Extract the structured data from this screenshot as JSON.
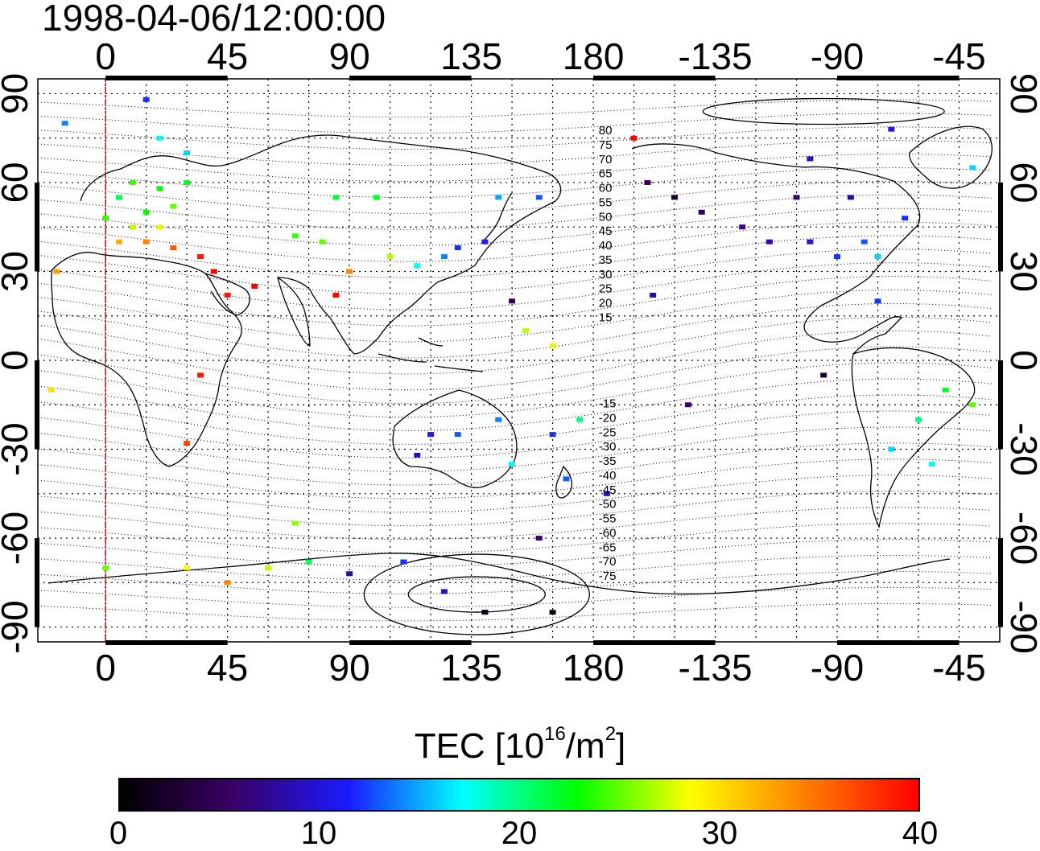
{
  "title": "1998-04-06/12:00:00",
  "map": {
    "lon_ticks_top": [
      "0",
      "45",
      "90",
      "135",
      "180",
      "-135",
      "-90",
      "-45"
    ],
    "lon_ticks_bottom": [
      "0",
      "45",
      "90",
      "135",
      "180",
      "-135",
      "-90",
      "-45"
    ],
    "lat_ticks_left": [
      "90",
      "60",
      "30",
      "0",
      "-30",
      "-60",
      "-90"
    ],
    "lat_ticks_right": [
      "90",
      "60",
      "30",
      "0",
      "-30",
      "-60",
      "-90"
    ],
    "lon_range": [
      -25,
      330
    ],
    "lat_range": [
      -95,
      95
    ],
    "meridian_line_lon": 0,
    "meridian_line_color": "#d00000",
    "graticule_step_deg": 15,
    "magnetic_contour_labels": [
      "80",
      "75",
      "70",
      "65",
      "60",
      "55",
      "50",
      "45",
      "40",
      "35",
      "30",
      "25",
      "20",
      "15",
      "-15",
      "-20",
      "-25",
      "-30",
      "-35",
      "-40",
      "-45",
      "-50",
      "-55",
      "-60",
      "-65",
      "-70",
      "-75"
    ],
    "colorbar": {
      "title": "TEC  [10",
      "title_exp": "16",
      "title_unit": "/m",
      "title_unit_exp": "2",
      "title_close": "]",
      "ticks": [
        "0",
        "10",
        "20",
        "30",
        "40"
      ],
      "range": [
        0,
        40
      ],
      "colors": [
        "#000000",
        "#3a0066",
        "#1a1aff",
        "#00ffff",
        "#00ff00",
        "#ffff00",
        "#ff7f00",
        "#ff0000"
      ]
    },
    "tec_points": [
      {
        "lon": 10,
        "lat": 60,
        "tec": 24
      },
      {
        "lon": 20,
        "lat": 58,
        "tec": 23
      },
      {
        "lon": 15,
        "lat": 50,
        "tec": 23
      },
      {
        "lon": 5,
        "lat": 55,
        "tec": 21
      },
      {
        "lon": 25,
        "lat": 52,
        "tec": 25
      },
      {
        "lon": 30,
        "lat": 60,
        "tec": 22
      },
      {
        "lon": 0,
        "lat": 48,
        "tec": 24
      },
      {
        "lon": 10,
        "lat": 45,
        "tec": 27
      },
      {
        "lon": 20,
        "lat": 45,
        "tec": 28
      },
      {
        "lon": 5,
        "lat": 40,
        "tec": 32
      },
      {
        "lon": 15,
        "lat": 40,
        "tec": 34
      },
      {
        "lon": 25,
        "lat": 38,
        "tec": 36
      },
      {
        "lon": 35,
        "lat": 35,
        "tec": 39
      },
      {
        "lon": 40,
        "lat": 30,
        "tec": 40
      },
      {
        "lon": 45,
        "lat": 22,
        "tec": 39
      },
      {
        "lon": 55,
        "lat": 25,
        "tec": 40
      },
      {
        "lon": 20,
        "lat": 75,
        "tec": 17
      },
      {
        "lon": -15,
        "lat": 80,
        "tec": 14
      },
      {
        "lon": 30,
        "lat": 70,
        "tec": 16
      },
      {
        "lon": 15,
        "lat": 88,
        "tec": 12
      },
      {
        "lon": -18,
        "lat": 30,
        "tec": 33
      },
      {
        "lon": -20,
        "lat": -10,
        "tec": 30
      },
      {
        "lon": 35,
        "lat": -5,
        "tec": 39
      },
      {
        "lon": 30,
        "lat": -28,
        "tec": 37
      },
      {
        "lon": 70,
        "lat": 42,
        "tec": 24
      },
      {
        "lon": 80,
        "lat": 40,
        "tec": 25
      },
      {
        "lon": 85,
        "lat": 55,
        "tec": 22
      },
      {
        "lon": 100,
        "lat": 55,
        "tec": 22
      },
      {
        "lon": 90,
        "lat": 30,
        "tec": 34
      },
      {
        "lon": 85,
        "lat": 22,
        "tec": 40
      },
      {
        "lon": 105,
        "lat": 35,
        "tec": 27
      },
      {
        "lon": 115,
        "lat": 32,
        "tec": 17
      },
      {
        "lon": 125,
        "lat": 35,
        "tec": 14
      },
      {
        "lon": 130,
        "lat": 38,
        "tec": 12
      },
      {
        "lon": 140,
        "lat": 40,
        "tec": 11
      },
      {
        "lon": 145,
        "lat": 55,
        "tec": 15
      },
      {
        "lon": 160,
        "lat": 55,
        "tec": 13
      },
      {
        "lon": 150,
        "lat": 20,
        "tec": 5
      },
      {
        "lon": 155,
        "lat": 10,
        "tec": 27
      },
      {
        "lon": 165,
        "lat": 5,
        "tec": 28
      },
      {
        "lon": 120,
        "lat": -25,
        "tec": 11
      },
      {
        "lon": 115,
        "lat": -32,
        "tec": 9
      },
      {
        "lon": 130,
        "lat": -25,
        "tec": 13
      },
      {
        "lon": 145,
        "lat": -20,
        "tec": 14
      },
      {
        "lon": 150,
        "lat": -35,
        "tec": 17
      },
      {
        "lon": 165,
        "lat": -25,
        "tec": 12
      },
      {
        "lon": 170,
        "lat": -40,
        "tec": 13
      },
      {
        "lon": 175,
        "lat": -20,
        "tec": 20
      },
      {
        "lon": 195,
        "lat": 75,
        "tec": 40
      },
      {
        "lon": 200,
        "lat": 60,
        "tec": 5
      },
      {
        "lon": 210,
        "lat": 55,
        "tec": 3
      },
      {
        "lon": 220,
        "lat": 50,
        "tec": 5
      },
      {
        "lon": 235,
        "lat": 45,
        "tec": 7
      },
      {
        "lon": 245,
        "lat": 40,
        "tec": 8
      },
      {
        "lon": 260,
        "lat": 40,
        "tec": 10
      },
      {
        "lon": 280,
        "lat": 40,
        "tec": 13
      },
      {
        "lon": 285,
        "lat": 35,
        "tec": 16
      },
      {
        "lon": 270,
        "lat": 35,
        "tec": 12
      },
      {
        "lon": 255,
        "lat": 55,
        "tec": 6
      },
      {
        "lon": 275,
        "lat": 55,
        "tec": 8
      },
      {
        "lon": 295,
        "lat": 48,
        "tec": 12
      },
      {
        "lon": 290,
        "lat": 78,
        "tec": 10
      },
      {
        "lon": 260,
        "lat": 68,
        "tec": 9
      },
      {
        "lon": 320,
        "lat": 65,
        "tec": 16
      },
      {
        "lon": 202,
        "lat": 22,
        "tec": 8
      },
      {
        "lon": 285,
        "lat": 20,
        "tec": 12
      },
      {
        "lon": 265,
        "lat": -5,
        "tec": 2
      },
      {
        "lon": 310,
        "lat": -10,
        "tec": 22
      },
      {
        "lon": 320,
        "lat": -15,
        "tec": 25
      },
      {
        "lon": 300,
        "lat": -20,
        "tec": 20
      },
      {
        "lon": 305,
        "lat": -35,
        "tec": 17
      },
      {
        "lon": 290,
        "lat": -30,
        "tec": 16
      },
      {
        "lon": 215,
        "lat": -15,
        "tec": 6
      },
      {
        "lon": 185,
        "lat": -45,
        "tec": 9
      },
      {
        "lon": 60,
        "lat": -70,
        "tec": 27
      },
      {
        "lon": 75,
        "lat": -68,
        "tec": 21
      },
      {
        "lon": 90,
        "lat": -72,
        "tec": 8
      },
      {
        "lon": 110,
        "lat": -68,
        "tec": 12
      },
      {
        "lon": 125,
        "lat": -78,
        "tec": 9
      },
      {
        "lon": 140,
        "lat": -85,
        "tec": 1
      },
      {
        "lon": 165,
        "lat": -85,
        "tec": 1
      },
      {
        "lon": 30,
        "lat": -70,
        "tec": 29
      },
      {
        "lon": 45,
        "lat": -75,
        "tec": 34
      },
      {
        "lon": 0,
        "lat": -70,
        "tec": 25
      },
      {
        "lon": 70,
        "lat": -55,
        "tec": 26
      },
      {
        "lon": 160,
        "lat": -60,
        "tec": 6
      }
    ]
  }
}
